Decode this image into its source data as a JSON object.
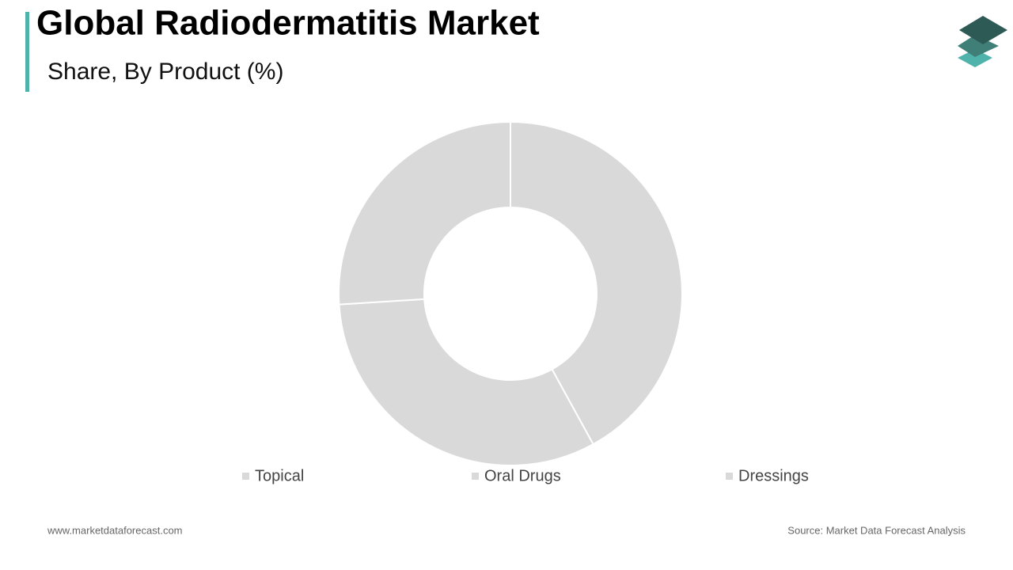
{
  "chart_data": {
    "type": "donut",
    "title": "Global Radiodermatitis Market",
    "subtitle": "Share, By Product (%)",
    "categories": [
      "Topical",
      "Oral Drugs",
      "Dressings"
    ],
    "values": [
      42,
      32,
      26
    ],
    "colors": [
      "#d9d9d9",
      "#d9d9d9",
      "#d9d9d9"
    ],
    "website": "www.marketdataforecast.com",
    "source": "Source: Market Data Forecast Analysis"
  }
}
